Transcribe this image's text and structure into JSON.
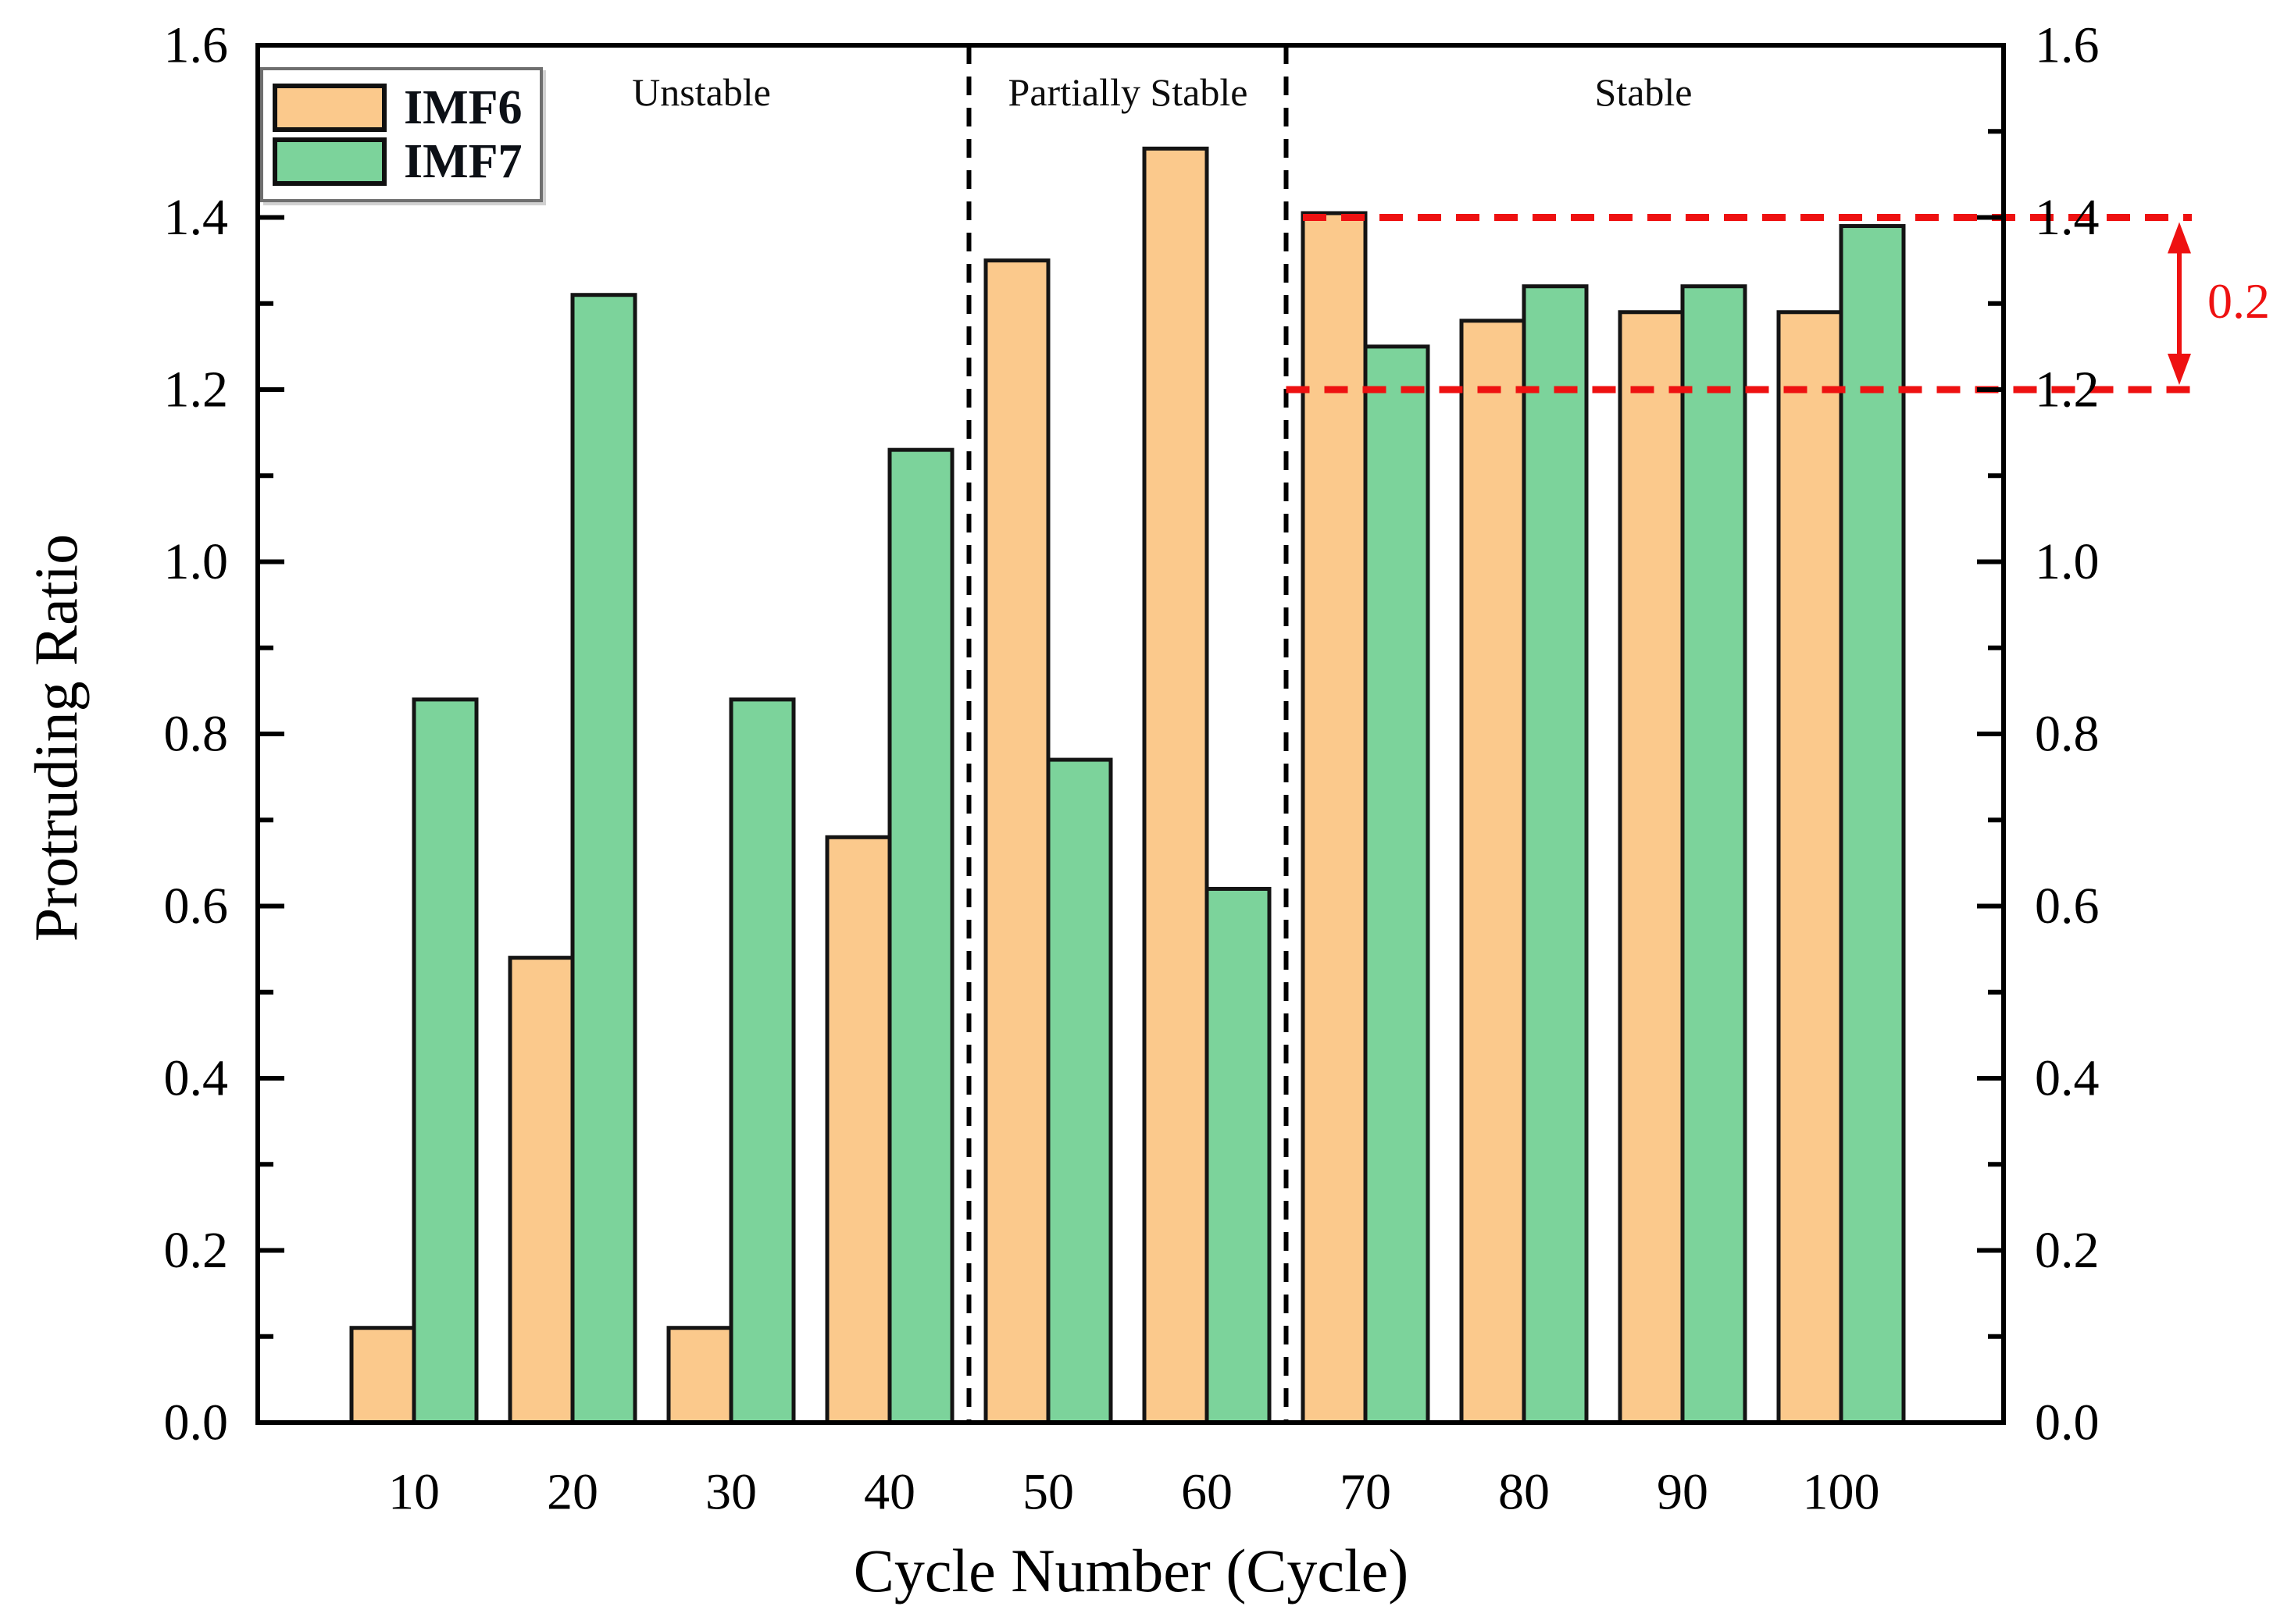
{
  "chart_data": {
    "type": "bar",
    "title": "",
    "xlabel": "Cycle Number (Cycle)",
    "ylabel": "Protruding Ratio",
    "categories": [
      10,
      20,
      30,
      40,
      50,
      60,
      70,
      80,
      90,
      100
    ],
    "series": [
      {
        "name": "IMF6",
        "color": "#FBC98C",
        "edge_color": "#141414",
        "values": [
          0.11,
          0.54,
          0.11,
          0.68,
          1.35,
          1.48,
          1.405,
          1.28,
          1.29,
          1.29
        ]
      },
      {
        "name": "IMF7",
        "color": "#7CD39B",
        "edge_color": "#141414",
        "values": [
          0.84,
          1.31,
          0.84,
          1.13,
          0.77,
          0.62,
          1.25,
          1.32,
          1.32,
          1.39
        ]
      }
    ],
    "ylim": [
      0,
      1.6
    ],
    "y_major_tick_step": 0.2,
    "y_minor_tick_step": 0.1,
    "y_tick_labels": [
      "0.0",
      "0.2",
      "0.4",
      "0.6",
      "0.8",
      "1.0",
      "1.2",
      "1.4",
      "1.6"
    ],
    "right_axis_mirrors_left": true,
    "grid": false,
    "legend_position": "top-left",
    "regions": [
      {
        "label": "Unstable",
        "from_cycle": 10,
        "to_cycle": 40
      },
      {
        "label": "Partially Stable",
        "from_cycle": 50,
        "to_cycle": 60
      },
      {
        "label": "Stable",
        "from_cycle": 70,
        "to_cycle": 100
      }
    ],
    "region_divider_cycles": [
      45,
      65
    ],
    "divider_style": {
      "color": "#000000",
      "style": "dashed"
    },
    "annotations": {
      "ref_lines": [
        {
          "y": 1.4,
          "color": "#EE1111",
          "style": "dashed"
        },
        {
          "y": 1.2,
          "color": "#EE1111",
          "style": "dashed"
        }
      ],
      "gap_arrow": {
        "from_y": 1.2,
        "to_y": 1.4,
        "label": "0.2",
        "color": "#EE1111"
      }
    }
  }
}
